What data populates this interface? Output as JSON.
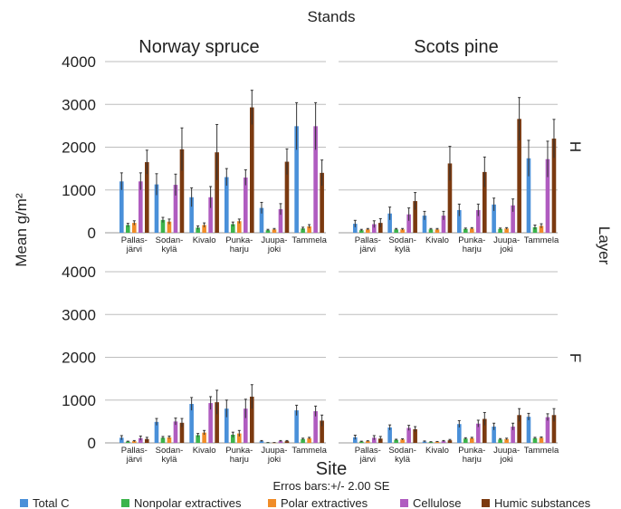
{
  "chart_data": {
    "type": "bar",
    "title": "Stands",
    "xlabel": "Site",
    "ylabel": "Mean g/m²",
    "right_label": "Layer",
    "note": "Erros bars:+/- 2.00 SE",
    "ylim": [
      0,
      4000
    ],
    "yticks": [
      0,
      1000,
      2000,
      3000,
      4000
    ],
    "columns": [
      "Norway spruce",
      "Scots pine"
    ],
    "rows": [
      "H",
      "F"
    ],
    "sites": [
      [
        "Pallas-",
        "järvi"
      ],
      [
        "Sodan-",
        "kylä"
      ],
      [
        "Kivalo",
        ""
      ],
      [
        "Punka-",
        "harju"
      ],
      [
        "Juupa-",
        "joki"
      ],
      [
        "Tammela",
        ""
      ]
    ],
    "series": [
      {
        "name": "Total C",
        "color": "#4a90d9"
      },
      {
        "name": "Nonpolar extractives",
        "color": "#3cb44b"
      },
      {
        "name": "Polar extractives",
        "color": "#f08c28"
      },
      {
        "name": "Cellulose",
        "color": "#b05cc0"
      },
      {
        "name": "Humic substances",
        "color": "#7b3a10"
      }
    ],
    "panels": [
      {
        "row": "H",
        "column": "Norway spruce",
        "values": [
          [
            1200,
            180,
            230,
            1200,
            1650
          ],
          [
            1130,
            300,
            260,
            1120,
            1950
          ],
          [
            830,
            120,
            180,
            830,
            1880
          ],
          [
            1300,
            200,
            270,
            1290,
            2930
          ],
          [
            580,
            60,
            80,
            550,
            1660
          ],
          [
            2490,
            100,
            150,
            2490,
            1400
          ]
        ],
        "errors": [
          [
            200,
            40,
            50,
            200,
            280
          ],
          [
            250,
            60,
            60,
            250,
            500
          ],
          [
            220,
            40,
            50,
            250,
            650
          ],
          [
            200,
            50,
            50,
            180,
            400
          ],
          [
            130,
            20,
            20,
            130,
            300
          ],
          [
            550,
            30,
            40,
            550,
            300
          ]
        ]
      },
      {
        "row": "H",
        "column": "Scots pine",
        "values": [
          [
            210,
            60,
            80,
            200,
            230
          ],
          [
            450,
            80,
            80,
            430,
            740
          ],
          [
            400,
            80,
            80,
            400,
            1620
          ],
          [
            530,
            90,
            100,
            530,
            1420
          ],
          [
            660,
            90,
            100,
            640,
            2660
          ],
          [
            1740,
            130,
            160,
            1720,
            2200
          ]
        ],
        "errors": [
          [
            80,
            20,
            20,
            80,
            100
          ],
          [
            150,
            20,
            20,
            150,
            200
          ],
          [
            100,
            20,
            20,
            100,
            400
          ],
          [
            140,
            20,
            20,
            140,
            350
          ],
          [
            150,
            20,
            20,
            150,
            500
          ],
          [
            420,
            50,
            50,
            420,
            450
          ]
        ]
      },
      {
        "row": "F",
        "column": "Norway spruce",
        "values": [
          [
            120,
            30,
            40,
            110,
            90
          ],
          [
            490,
            120,
            130,
            500,
            470
          ],
          [
            910,
            180,
            240,
            930,
            950
          ],
          [
            800,
            190,
            220,
            800,
            1080
          ],
          [
            40,
            5,
            5,
            40,
            40
          ],
          [
            760,
            90,
            110,
            740,
            520
          ]
        ],
        "errors": [
          [
            50,
            10,
            15,
            50,
            40
          ],
          [
            80,
            30,
            30,
            80,
            100
          ],
          [
            150,
            40,
            50,
            150,
            280
          ],
          [
            200,
            60,
            70,
            220,
            280
          ],
          [
            15,
            3,
            3,
            15,
            15
          ],
          [
            120,
            20,
            20,
            120,
            130
          ]
        ]
      },
      {
        "row": "F",
        "column": "Scots pine",
        "values": [
          [
            130,
            30,
            40,
            120,
            100
          ],
          [
            360,
            70,
            80,
            350,
            320
          ],
          [
            30,
            20,
            25,
            40,
            60
          ],
          [
            440,
            100,
            110,
            450,
            560
          ],
          [
            380,
            80,
            90,
            380,
            650
          ],
          [
            610,
            110,
            120,
            600,
            650
          ]
        ],
        "errors": [
          [
            50,
            10,
            10,
            50,
            50
          ],
          [
            60,
            15,
            15,
            60,
            60
          ],
          [
            15,
            8,
            8,
            15,
            20
          ],
          [
            80,
            20,
            20,
            80,
            150
          ],
          [
            80,
            20,
            20,
            80,
            150
          ],
          [
            80,
            20,
            20,
            80,
            150
          ]
        ]
      }
    ]
  }
}
